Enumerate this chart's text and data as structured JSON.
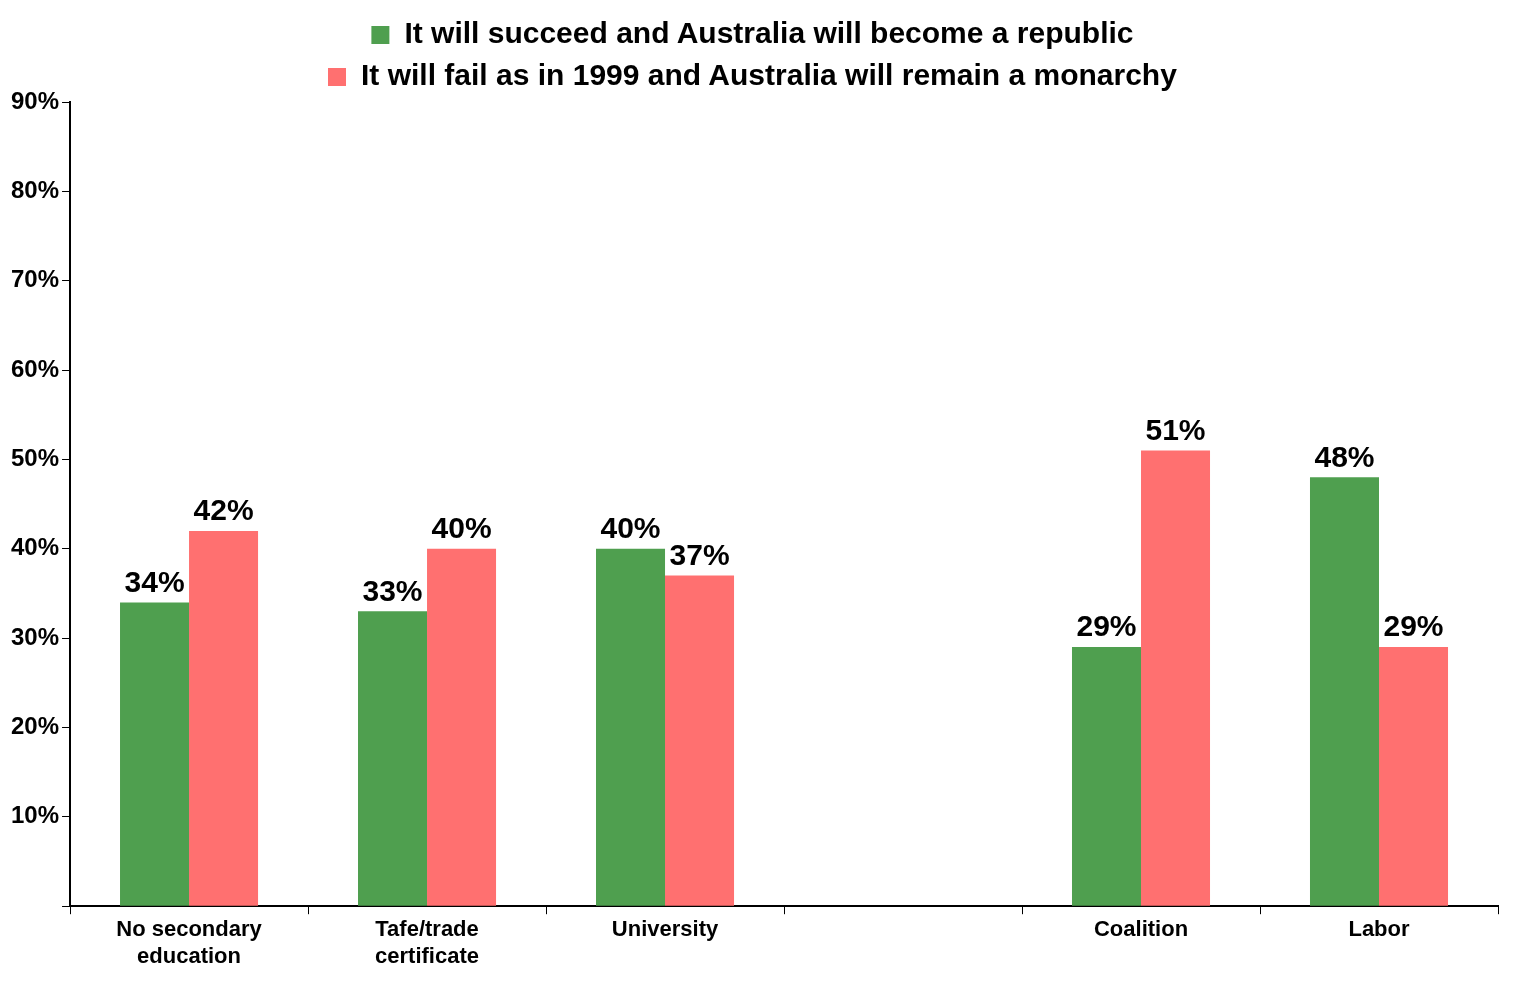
{
  "chart_data": {
    "type": "bar",
    "categories": [
      "No secondary education",
      "Tafe/trade certificate",
      "University",
      null,
      "Coalition",
      "Labor"
    ],
    "series": [
      {
        "name": "It will succeed and Australia will become a republic",
        "color": "#4f9f4f",
        "values": [
          34,
          33,
          40,
          null,
          29,
          48
        ],
        "value_labels": [
          "34%",
          "33%",
          "40%",
          null,
          "29%",
          "48%"
        ]
      },
      {
        "name": "It will fail as in 1999 and Australia will remain a monarchy",
        "color": "#ff7070",
        "values": [
          42,
          40,
          37,
          null,
          51,
          29
        ],
        "value_labels": [
          "42%",
          "40%",
          "37%",
          null,
          "51%",
          "29%"
        ]
      }
    ],
    "ylim": [
      0,
      90
    ],
    "yticks": [
      {
        "value": 0,
        "label": null
      },
      {
        "value": 10,
        "label": "10%"
      },
      {
        "value": 20,
        "label": "20%"
      },
      {
        "value": 30,
        "label": "30%"
      },
      {
        "value": 40,
        "label": "40%"
      },
      {
        "value": 50,
        "label": "50%"
      },
      {
        "value": 60,
        "label": "60%"
      },
      {
        "value": 70,
        "label": "70%"
      },
      {
        "value": 80,
        "label": "80%"
      },
      {
        "value": 90,
        "label": "90%"
      }
    ],
    "grid": false,
    "legend": "top"
  }
}
